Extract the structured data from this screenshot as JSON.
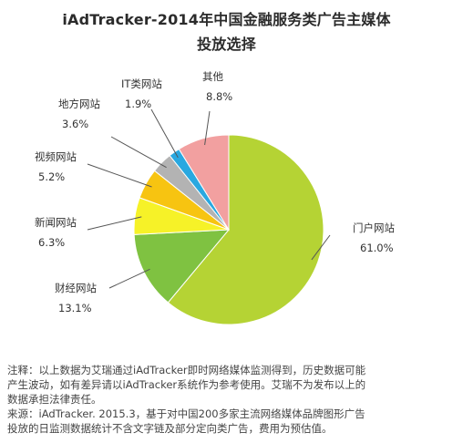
{
  "title_lines": [
    "iAdTracker-2014年中国金融服务类广告主媒体",
    "投放选择"
  ],
  "chart_data": {
    "type": "pie",
    "unit": "%",
    "slices": [
      {
        "name": "门户网站",
        "value": 61.0,
        "value_label": "61.0%",
        "color": "#b5d334"
      },
      {
        "name": "财经网站",
        "value": 13.1,
        "value_label": "13.1%",
        "color": "#7fc241"
      },
      {
        "name": "新闻网站",
        "value": 6.3,
        "value_label": "6.3%",
        "color": "#f6f228"
      },
      {
        "name": "视频网站",
        "value": 5.2,
        "value_label": "5.2%",
        "color": "#f7c411"
      },
      {
        "name": "地方网站",
        "value": 3.6,
        "value_label": "3.6%",
        "color": "#b3b3b3"
      },
      {
        "name": "IT类网站",
        "value": 1.9,
        "value_label": "1.9%",
        "color": "#29a8e0"
      },
      {
        "name": "其他",
        "value": 8.8,
        "value_label": "8.8%",
        "color": "#f2a0a0"
      }
    ]
  },
  "notes": [
    "注释：以上数据为艾瑞通过iAdTracker即时网络媒体监测得到，历史数据可能",
    "产生波动，如有差异请以iAdTracker系统作为参考使用。艾瑞不为发布以上的",
    "数据承担法律责任。",
    "来源：iAdTracker. 2015.3，基于对中国200多家主流网络媒体品牌图形广告",
    "投放的日监测数据统计不含文字链及部分定向类广告，费用为预估值。"
  ]
}
